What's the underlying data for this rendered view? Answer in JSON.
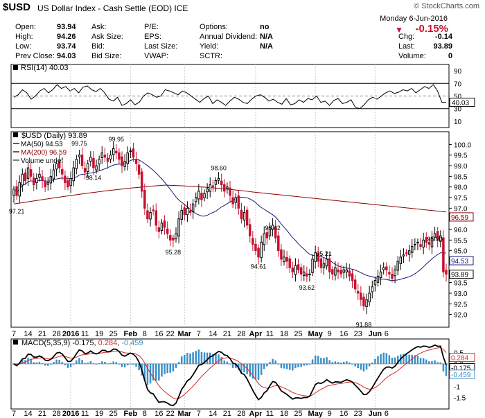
{
  "header": {
    "symbol": "$USD",
    "name": "US Dollar Index - Cash Settle (EOD)",
    "exchange": "ICE",
    "logo": "© StockCharts.com",
    "date": "Monday  6-Jun-2016",
    "pct_change": "-0.15%",
    "arrow_color": "#c8102e"
  },
  "quote": {
    "col1": [
      [
        "Open:",
        "93.94"
      ],
      [
        "High:",
        "94.26"
      ],
      [
        "Low:",
        "93.74"
      ],
      [
        "Prev Close:",
        "94.03"
      ]
    ],
    "col2": [
      "Ask:",
      "Ask Size:",
      "Bid:",
      "Bid Size:"
    ],
    "col3": [
      "P/E:",
      "EPS:",
      "Last Size:",
      "VWAP:"
    ],
    "col4": [
      [
        "Options:",
        "no"
      ],
      [
        "Annual Dividend:",
        "N/A"
      ],
      [
        "Yield:",
        "N/A"
      ],
      [
        "SCTR:",
        ""
      ]
    ],
    "col5": [
      [
        "Chg:",
        "-0.14"
      ],
      [
        "Last:",
        "93.89"
      ],
      [
        "Volume:",
        "0"
      ]
    ]
  },
  "chart_data": [
    {
      "type": "line",
      "title": "RSI(14) 40.03",
      "yticks": [
        10,
        30,
        50,
        70,
        90
      ],
      "ylim": [
        0,
        100
      ],
      "last_label": "40.03",
      "color": "#000000",
      "values": [
        48,
        52,
        60,
        55,
        45,
        50,
        58,
        62,
        55,
        60,
        68,
        62,
        65,
        58,
        62,
        55,
        64,
        66,
        60,
        57,
        62,
        55,
        45,
        42,
        48,
        35,
        38,
        44,
        36,
        40,
        50,
        55,
        52,
        48,
        50,
        60,
        58,
        55,
        52,
        58,
        55,
        50,
        45,
        40,
        46,
        50,
        38,
        44,
        40,
        35,
        42,
        48,
        45,
        40,
        38,
        45,
        50,
        52,
        48,
        42,
        45,
        40,
        37,
        46,
        36,
        38,
        44,
        40,
        46,
        44,
        50,
        40,
        42,
        35,
        43,
        46,
        38,
        40,
        44,
        32,
        30,
        36,
        44,
        48,
        45,
        50,
        55,
        58,
        54,
        56,
        60,
        58,
        62,
        55,
        60,
        65,
        62,
        68,
        58,
        40,
        40
      ]
    },
    {
      "type": "candlestick",
      "title": "$USD (Daily) 93.89",
      "legend": [
        {
          "label": "MA(50) 94.53",
          "color": "#1a1a7a"
        },
        {
          "label": "MA(200) 96.59",
          "color": "#8b0000"
        },
        {
          "label": "Volume undef",
          "color": "#555555"
        }
      ],
      "ylim": [
        91.4,
        100.6
      ],
      "yticks": [
        92.0,
        92.5,
        93.0,
        93.5,
        94.0,
        94.5,
        95.0,
        95.5,
        96.0,
        96.5,
        97.0,
        97.5,
        98.0,
        98.5,
        99.0,
        99.5,
        100.0
      ],
      "ma_labels": [
        {
          "label": "96.59",
          "value": 96.59,
          "color": "#8b0000"
        },
        {
          "label": "94.53",
          "value": 94.53,
          "color": "#1a1a7a"
        },
        {
          "label": "93.89",
          "value": 93.89,
          "color": "#000000"
        }
      ],
      "annotations": [
        {
          "text": "97.21",
          "i": 1,
          "v": 97.21
        },
        {
          "text": "99.75",
          "i": 23,
          "v": 99.75
        },
        {
          "text": "99.95",
          "i": 36,
          "v": 99.95
        },
        {
          "text": "98.14",
          "i": 28,
          "v": 98.14
        },
        {
          "text": "95.28",
          "i": 56,
          "v": 95.28
        },
        {
          "text": "98.60",
          "i": 72,
          "v": 98.6
        },
        {
          "text": "96.42",
          "i": 91,
          "v": 96.42
        },
        {
          "text": "94.61",
          "i": 86,
          "v": 94.61
        },
        {
          "text": "95.21",
          "i": 109,
          "v": 95.21
        },
        {
          "text": "93.62",
          "i": 103,
          "v": 93.62
        },
        {
          "text": "91.88",
          "i": 123,
          "v": 91.88
        },
        {
          "text": "95.90",
          "i": 148,
          "v": 95.9
        }
      ],
      "close": [
        97.9,
        97.6,
        98.2,
        98.6,
        98.3,
        98.9,
        98.5,
        98.1,
        98.4,
        98.6,
        98.3,
        98.0,
        98.2,
        98.5,
        98.8,
        99.1,
        98.9,
        98.6,
        98.2,
        98.0,
        98.4,
        98.9,
        99.3,
        99.5,
        99.0,
        98.7,
        99.1,
        99.4,
        98.9,
        99.0,
        99.3,
        99.6,
        99.4,
        99.2,
        99.5,
        99.8,
        99.6,
        99.3,
        99.0,
        99.2,
        99.6,
        99.7,
        99.4,
        99.1,
        98.6,
        97.8,
        97.0,
        96.5,
        96.8,
        96.9,
        96.2,
        95.9,
        96.3,
        96.1,
        95.8,
        95.5,
        95.5,
        95.8,
        96.5,
        96.9,
        96.7,
        97.0,
        96.8,
        97.2,
        97.5,
        97.8,
        97.4,
        97.7,
        97.9,
        98.1,
        98.0,
        98.3,
        98.4,
        98.1,
        97.8,
        98.0,
        97.6,
        97.2,
        97.5,
        97.0,
        96.5,
        96.8,
        96.2,
        95.7,
        95.3,
        95.0,
        94.7,
        95.4,
        95.8,
        95.6,
        96.1,
        96.2,
        95.6,
        95.0,
        94.6,
        94.7,
        94.5,
        94.2,
        94.0,
        94.3,
        94.1,
        93.9,
        94.0,
        93.8,
        93.9,
        94.6,
        94.9,
        94.5,
        94.2,
        94.4,
        94.6,
        94.0,
        93.9,
        94.2,
        94.0,
        93.9,
        94.1,
        94.1,
        93.8,
        93.6,
        93.2,
        93.0,
        92.7,
        92.4,
        92.7,
        93.0,
        93.3,
        93.6,
        93.8,
        94.0,
        94.2,
        94.1,
        93.9,
        93.7,
        94.1,
        94.5,
        94.7,
        94.8,
        94.9,
        95.0,
        95.2,
        95.3,
        95.4,
        95.2,
        95.5,
        95.4,
        95.3,
        95.6,
        95.8,
        95.5,
        95.7,
        94.0,
        93.89
      ],
      "ma50": [
        null
      ],
      "ma200": [
        null
      ]
    },
    {
      "type": "line",
      "title": "MACD(5,35,9) -0.175, 0.284, -0.459",
      "title_parts": [
        "MACD(5,35,9) -0.175, ",
        "0.284",
        ", ",
        "-0.459"
      ],
      "ylim": [
        -2.0,
        1.1
      ],
      "yticks": [
        -1.5,
        -1.0,
        -0.5,
        0.0,
        0.5
      ],
      "last_labels": [
        {
          "label": "0.284",
          "value": 0.284
        },
        {
          "label": "-0.175",
          "value": -0.175
        },
        {
          "label": "-0.459",
          "value": -0.459
        }
      ],
      "series": [
        {
          "name": "MACD",
          "color": "#000000"
        },
        {
          "name": "Signal",
          "color": "#d62828"
        },
        {
          "name": "Histogram",
          "color": "#3a8fc8"
        }
      ]
    }
  ],
  "xaxis": {
    "labels": [
      "7",
      "14",
      "21",
      "28",
      "2016",
      "11",
      "19",
      "25",
      "Feb",
      "8",
      "16",
      "22",
      "Mar",
      "7",
      "14",
      "21",
      "28",
      "Apr",
      "11",
      "18",
      "25",
      "May",
      "9",
      "16",
      "23",
      "Jun",
      "6"
    ],
    "positions": [
      0,
      5,
      10,
      15,
      20,
      25,
      30,
      35,
      41,
      46,
      51,
      55,
      60,
      65,
      70,
      75,
      80,
      85,
      90,
      95,
      100,
      106,
      111,
      116,
      121,
      127,
      131
    ],
    "bold": [
      "2016",
      "Feb",
      "Mar",
      "Apr",
      "May",
      "Jun"
    ]
  }
}
